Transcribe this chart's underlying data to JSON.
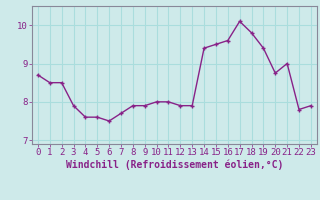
{
  "x": [
    0,
    1,
    2,
    3,
    4,
    5,
    6,
    7,
    8,
    9,
    10,
    11,
    12,
    13,
    14,
    15,
    16,
    17,
    18,
    19,
    20,
    21,
    22,
    23
  ],
  "y": [
    8.7,
    8.5,
    8.5,
    7.9,
    7.6,
    7.6,
    7.5,
    7.7,
    7.9,
    7.9,
    8.0,
    8.0,
    7.9,
    7.9,
    9.4,
    9.5,
    9.6,
    10.1,
    9.8,
    9.4,
    8.75,
    9.0,
    7.8,
    7.9
  ],
  "line_color": "#882288",
  "marker": "+",
  "marker_size": 3,
  "bg_color": "#ceeaea",
  "grid_color": "#aadddd",
  "xlabel": "Windchill (Refroidissement éolien,°C)",
  "xlabel_fontsize": 7,
  "ylim": [
    6.9,
    10.5
  ],
  "xlim": [
    -0.5,
    23.5
  ],
  "yticks": [
    7,
    8,
    9,
    10
  ],
  "xticks": [
    0,
    1,
    2,
    3,
    4,
    5,
    6,
    7,
    8,
    9,
    10,
    11,
    12,
    13,
    14,
    15,
    16,
    17,
    18,
    19,
    20,
    21,
    22,
    23
  ],
  "tick_fontsize": 6.5,
  "line_width": 1.0,
  "spine_color": "#888899"
}
